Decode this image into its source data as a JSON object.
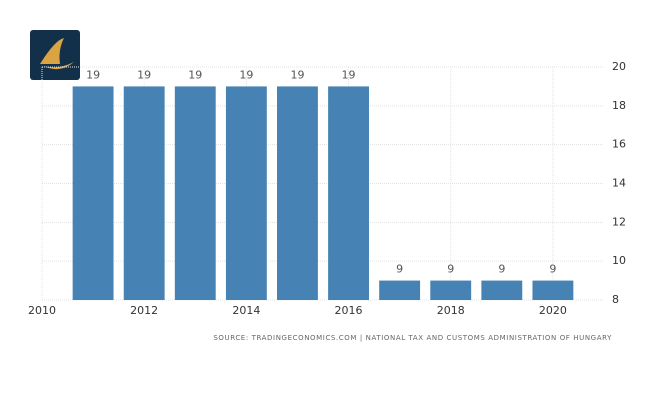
{
  "chart_data": {
    "type": "bar",
    "source": "SOURCE: TRADINGECONOMICS.COM | NATIONAL TAX AND CUSTOMS ADMINISTRATION OF HUNGARY",
    "x": [
      2011,
      2012,
      2013,
      2014,
      2015,
      2016,
      2017,
      2018,
      2019,
      2020
    ],
    "values": [
      19,
      19,
      19,
      19,
      19,
      19,
      9,
      9,
      9,
      9
    ],
    "color": "#4682b4",
    "xlim": [
      2010,
      2021
    ],
    "xticks": [
      2010,
      2012,
      2014,
      2016,
      2018,
      2020
    ],
    "ylim": [
      8,
      20
    ],
    "yticks": [
      8,
      10,
      12,
      14,
      16,
      18,
      20
    ],
    "grid": true
  }
}
